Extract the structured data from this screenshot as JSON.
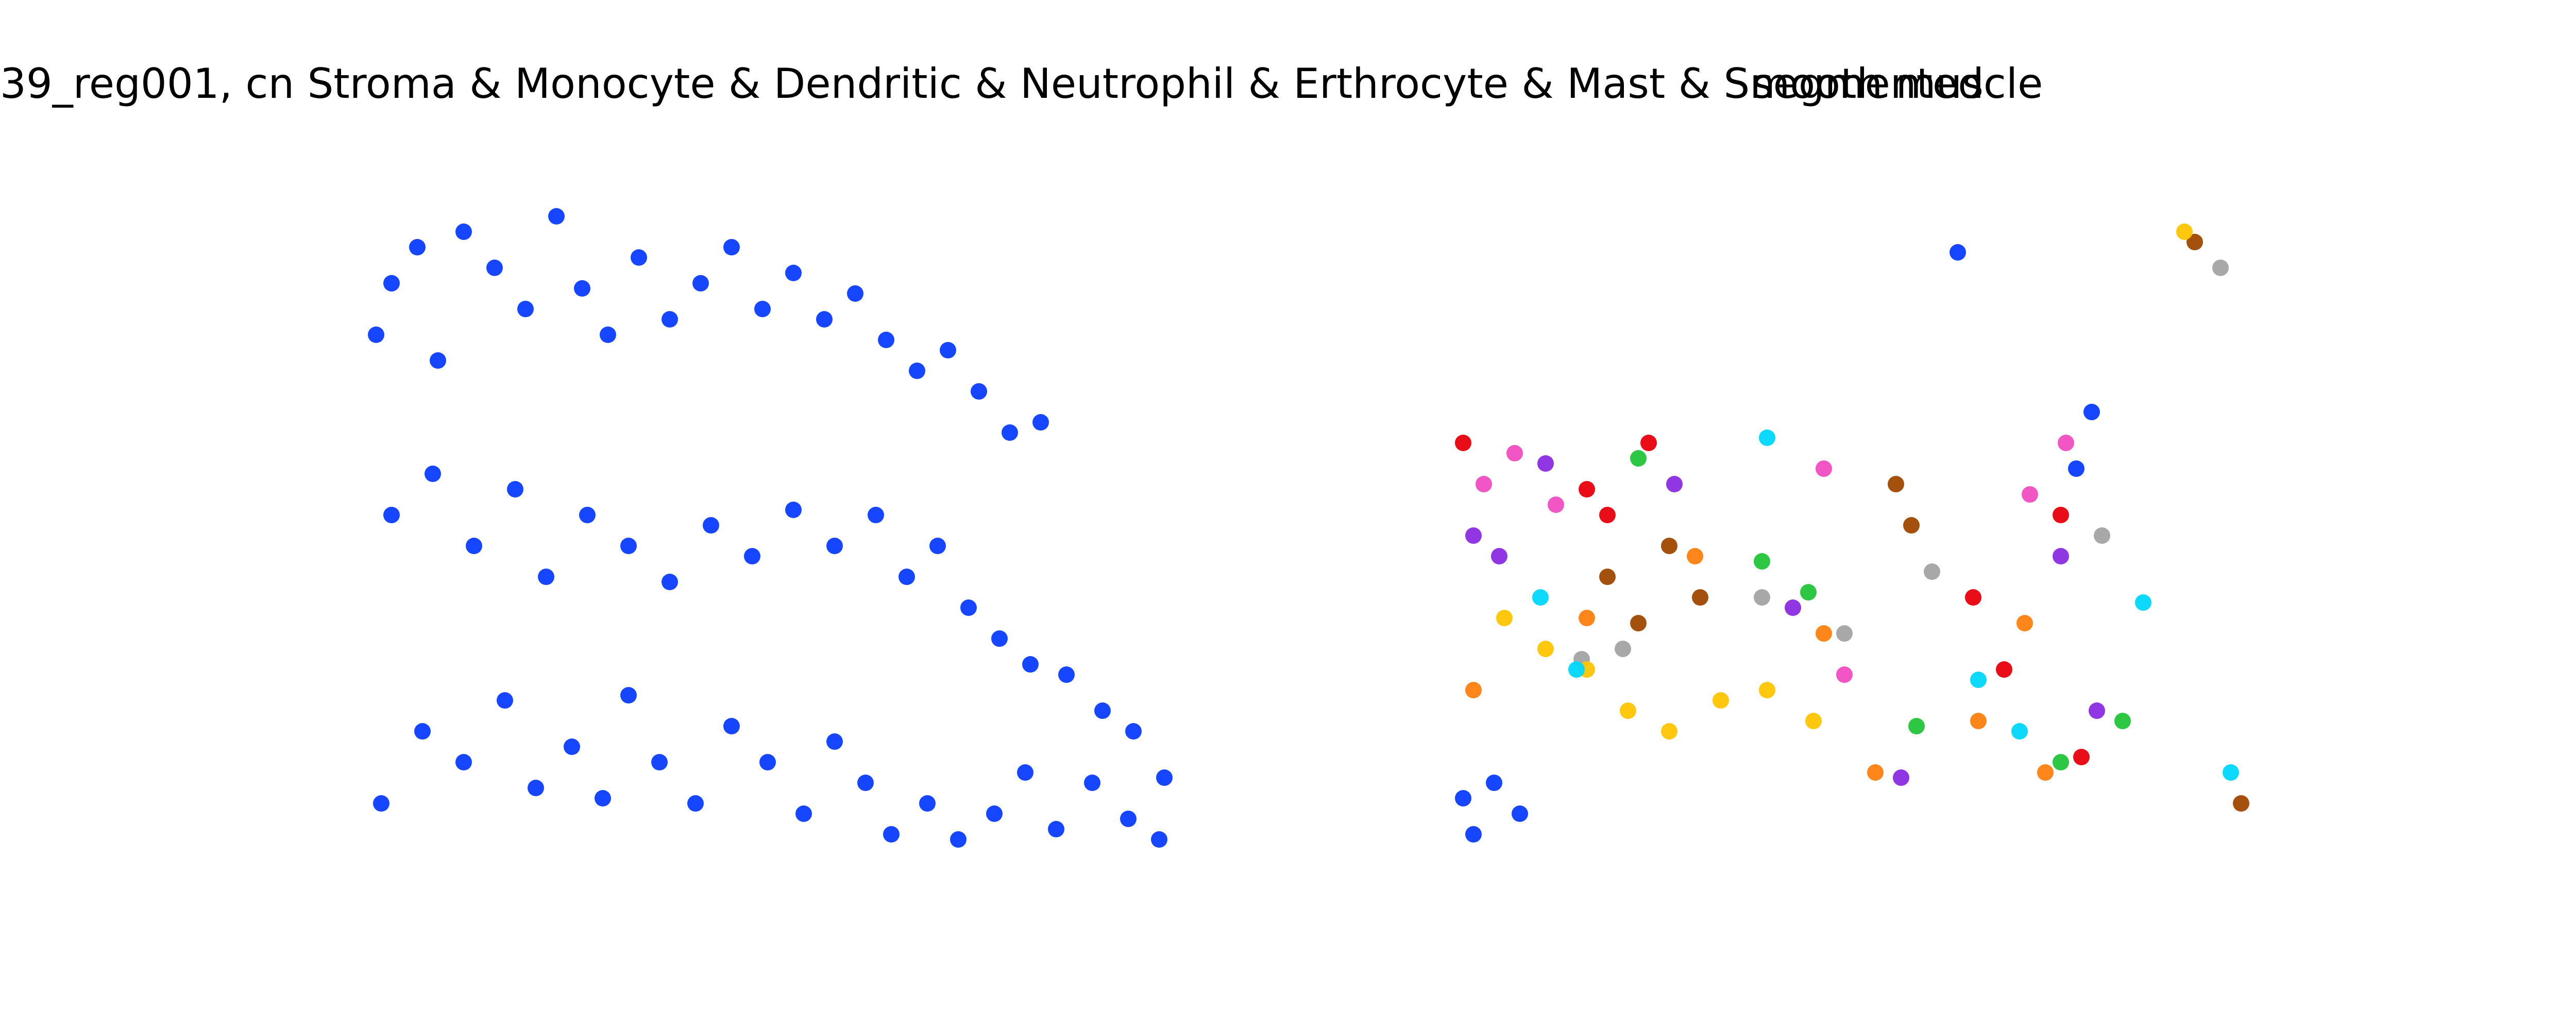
{
  "figure": {
    "panels": [
      {
        "title": "39_reg001, cn Stroma & Monocyte & Dendritic & Neutrophil & Erthrocyte & Mast & Smooth muscle",
        "mode": "single color",
        "color": "#0a3cff"
      },
      {
        "title": "segmented",
        "mode": "clusters",
        "palette": [
          "#0a3cff",
          "#ff7f0e",
          "#22c43a",
          "#e8000b",
          "#8b2be2",
          "#9f4800",
          "#f14cc1",
          "#a3a3a3",
          "#ffc400",
          "#00d7ff"
        ]
      }
    ]
  },
  "chart_data": [
    {
      "type": "scatter",
      "title": "39_reg001, cn Stroma & Monocyte & Dendritic & Neutrophil & Erthrocyte & Mast & Smooth muscle",
      "axes": "off",
      "grid": false,
      "legend": "none",
      "color": "#0a3cff",
      "xlim": [
        0,
        1600
      ],
      "ylim": [
        0,
        1400
      ],
      "y_inverted": true,
      "series": [
        {
          "label": "blue cells",
          "points": [
            [
              30,
              350
            ],
            [
              60,
              250
            ],
            [
              110,
              180
            ],
            [
              150,
              400
            ],
            [
              200,
              150
            ],
            [
              260,
              220
            ],
            [
              320,
              300
            ],
            [
              380,
              120
            ],
            [
              430,
              260
            ],
            [
              480,
              350
            ],
            [
              540,
              200
            ],
            [
              600,
              320
            ],
            [
              660,
              250
            ],
            [
              720,
              180
            ],
            [
              780,
              300
            ],
            [
              840,
              230
            ],
            [
              900,
              320
            ],
            [
              960,
              270
            ],
            [
              1020,
              360
            ],
            [
              1080,
              420
            ],
            [
              1140,
              380
            ],
            [
              1200,
              460
            ],
            [
              1260,
              540
            ],
            [
              1320,
              520
            ],
            [
              60,
              700
            ],
            [
              140,
              620
            ],
            [
              220,
              760
            ],
            [
              300,
              650
            ],
            [
              360,
              820
            ],
            [
              440,
              700
            ],
            [
              520,
              760
            ],
            [
              600,
              830
            ],
            [
              680,
              720
            ],
            [
              760,
              780
            ],
            [
              840,
              690
            ],
            [
              920,
              760
            ],
            [
              1000,
              700
            ],
            [
              1060,
              820
            ],
            [
              1120,
              760
            ],
            [
              1180,
              880
            ],
            [
              1240,
              940
            ],
            [
              1300,
              990
            ],
            [
              1370,
              1010
            ],
            [
              1440,
              1080
            ],
            [
              1500,
              1120
            ],
            [
              1560,
              1210
            ],
            [
              40,
              1260
            ],
            [
              120,
              1120
            ],
            [
              200,
              1180
            ],
            [
              280,
              1060
            ],
            [
              340,
              1230
            ],
            [
              410,
              1150
            ],
            [
              470,
              1250
            ],
            [
              520,
              1050
            ],
            [
              580,
              1180
            ],
            [
              650,
              1260
            ],
            [
              720,
              1110
            ],
            [
              790,
              1180
            ],
            [
              860,
              1280
            ],
            [
              920,
              1140
            ],
            [
              980,
              1220
            ],
            [
              1030,
              1320
            ],
            [
              1100,
              1260
            ],
            [
              1160,
              1330
            ],
            [
              1230,
              1280
            ],
            [
              1290,
              1200
            ],
            [
              1350,
              1310
            ],
            [
              1420,
              1220
            ],
            [
              1490,
              1290
            ],
            [
              1550,
              1330
            ]
          ]
        }
      ]
    },
    {
      "type": "scatter",
      "title": "segmented",
      "axes": "off",
      "grid": false,
      "legend": "none",
      "xlim": [
        0,
        1600
      ],
      "ylim": [
        0,
        1400
      ],
      "y_inverted": true,
      "series": [
        {
          "label": "cluster blue",
          "color": "#0a3cff",
          "points": [
            [
              20,
              1250
            ],
            [
              80,
              1220
            ],
            [
              130,
              1280
            ],
            [
              40,
              1320
            ],
            [
              980,
              190
            ],
            [
              1240,
              500
            ],
            [
              1210,
              610
            ]
          ]
        },
        {
          "label": "cluster orange",
          "color": "#ff7f0e",
          "points": [
            [
              40,
              1040
            ],
            [
              260,
              900
            ],
            [
              470,
              780
            ],
            [
              720,
              930
            ],
            [
              820,
              1200
            ],
            [
              1020,
              1100
            ],
            [
              1110,
              910
            ],
            [
              1150,
              1200
            ]
          ]
        },
        {
          "label": "cluster green",
          "color": "#22c43a",
          "points": [
            [
              360,
              590
            ],
            [
              600,
              790
            ],
            [
              690,
              850
            ],
            [
              900,
              1110
            ],
            [
              1180,
              1180
            ],
            [
              1300,
              1100
            ]
          ]
        },
        {
          "label": "cluster red",
          "color": "#e8000b",
          "points": [
            [
              20,
              560
            ],
            [
              260,
              650
            ],
            [
              300,
              700
            ],
            [
              380,
              560
            ],
            [
              1010,
              860
            ],
            [
              1070,
              1000
            ],
            [
              1180,
              700
            ],
            [
              1220,
              1170
            ]
          ]
        },
        {
          "label": "cluster purple",
          "color": "#8b2be2",
          "points": [
            [
              40,
              740
            ],
            [
              90,
              780
            ],
            [
              180,
              600
            ],
            [
              430,
              640
            ],
            [
              660,
              880
            ],
            [
              870,
              1210
            ],
            [
              1180,
              780
            ],
            [
              1250,
              1080
            ]
          ]
        },
        {
          "label": "cluster brown",
          "color": "#9f4800",
          "points": [
            [
              300,
              820
            ],
            [
              360,
              910
            ],
            [
              420,
              760
            ],
            [
              480,
              860
            ],
            [
              860,
              640
            ],
            [
              890,
              720
            ],
            [
              1440,
              170
            ],
            [
              1530,
              1260
            ]
          ]
        },
        {
          "label": "cluster pink",
          "color": "#f14cc1",
          "points": [
            [
              60,
              640
            ],
            [
              120,
              580
            ],
            [
              200,
              680
            ],
            [
              720,
              610
            ],
            [
              760,
              1010
            ],
            [
              1120,
              660
            ],
            [
              1190,
              560
            ]
          ]
        },
        {
          "label": "cluster gray",
          "color": "#a3a3a3",
          "points": [
            [
              250,
              980
            ],
            [
              330,
              960
            ],
            [
              600,
              860
            ],
            [
              760,
              930
            ],
            [
              930,
              810
            ],
            [
              1260,
              740
            ],
            [
              1490,
              220
            ]
          ]
        },
        {
          "label": "cluster yellow",
          "color": "#ffc400",
          "points": [
            [
              100,
              900
            ],
            [
              180,
              960
            ],
            [
              260,
              1000
            ],
            [
              340,
              1080
            ],
            [
              420,
              1120
            ],
            [
              520,
              1060
            ],
            [
              610,
              1040
            ],
            [
              700,
              1100
            ],
            [
              1420,
              150
            ]
          ]
        },
        {
          "label": "cluster cyan",
          "color": "#00d7ff",
          "points": [
            [
              170,
              860
            ],
            [
              240,
              1000
            ],
            [
              610,
              550
            ],
            [
              1020,
              1020
            ],
            [
              1100,
              1120
            ],
            [
              1340,
              870
            ],
            [
              1510,
              1200
            ]
          ]
        }
      ]
    }
  ]
}
